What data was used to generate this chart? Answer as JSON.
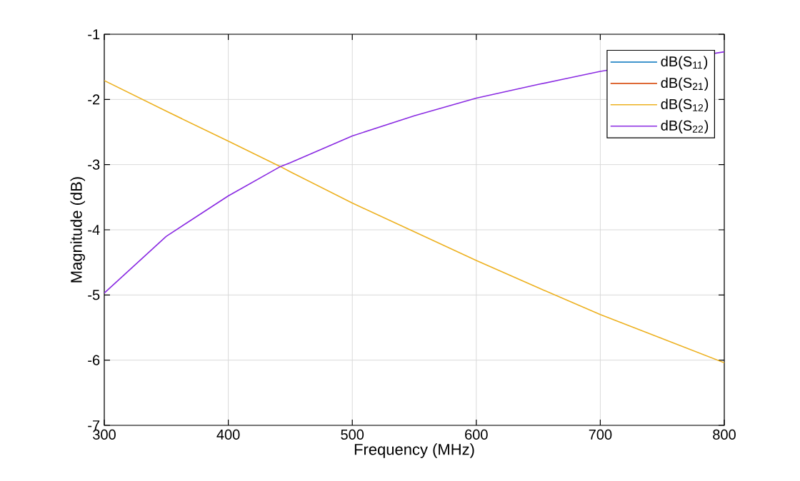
{
  "chart_data": {
    "type": "line",
    "xlabel": "Frequency (MHz)",
    "ylabel": "Magnitude (dB)",
    "x": [
      300,
      350,
      400,
      442,
      450,
      500,
      550,
      600,
      650,
      700,
      750,
      800
    ],
    "series": [
      {
        "name": "dB(S$_{11}$)",
        "color": "#0072bd",
        "values": [
          null,
          null,
          null,
          null,
          null,
          null,
          null,
          null,
          null,
          null,
          null,
          null
        ]
      },
      {
        "name": "dB(S$_{21}$)",
        "color": "#d95319",
        "values": [
          null,
          null,
          null,
          null,
          null,
          null,
          null,
          null,
          null,
          null,
          null,
          null
        ]
      },
      {
        "name": "dB(S$_{12}$)",
        "color": "#edb120",
        "values": [
          -1.71,
          -2.18,
          -2.64,
          -3.03,
          -3.11,
          -3.59,
          -4.03,
          -4.47,
          -4.89,
          -5.3,
          -5.67,
          -6.04
        ]
      },
      {
        "name": "dB(S$_{22}$)",
        "color": "#8a2be2",
        "x": [
          300,
          350,
          400,
          442,
          450,
          500,
          550,
          600,
          650,
          670,
          700,
          800
        ],
        "values": [
          -4.97,
          -4.1,
          -3.48,
          -3.03,
          -2.97,
          -2.56,
          -2.25,
          -1.98,
          -1.77,
          -1.69,
          -1.57,
          -1.27
        ]
      }
    ],
    "xlim": [
      300,
      800
    ],
    "ylim": [
      -7,
      -1
    ],
    "xticks": [
      300,
      400,
      500,
      600,
      700,
      800
    ],
    "yticks": [
      -7,
      -6,
      -5,
      -4,
      -3,
      -2,
      -1
    ],
    "grid": true,
    "legend": "top right",
    "marker": "none",
    "line_style": "solid"
  }
}
